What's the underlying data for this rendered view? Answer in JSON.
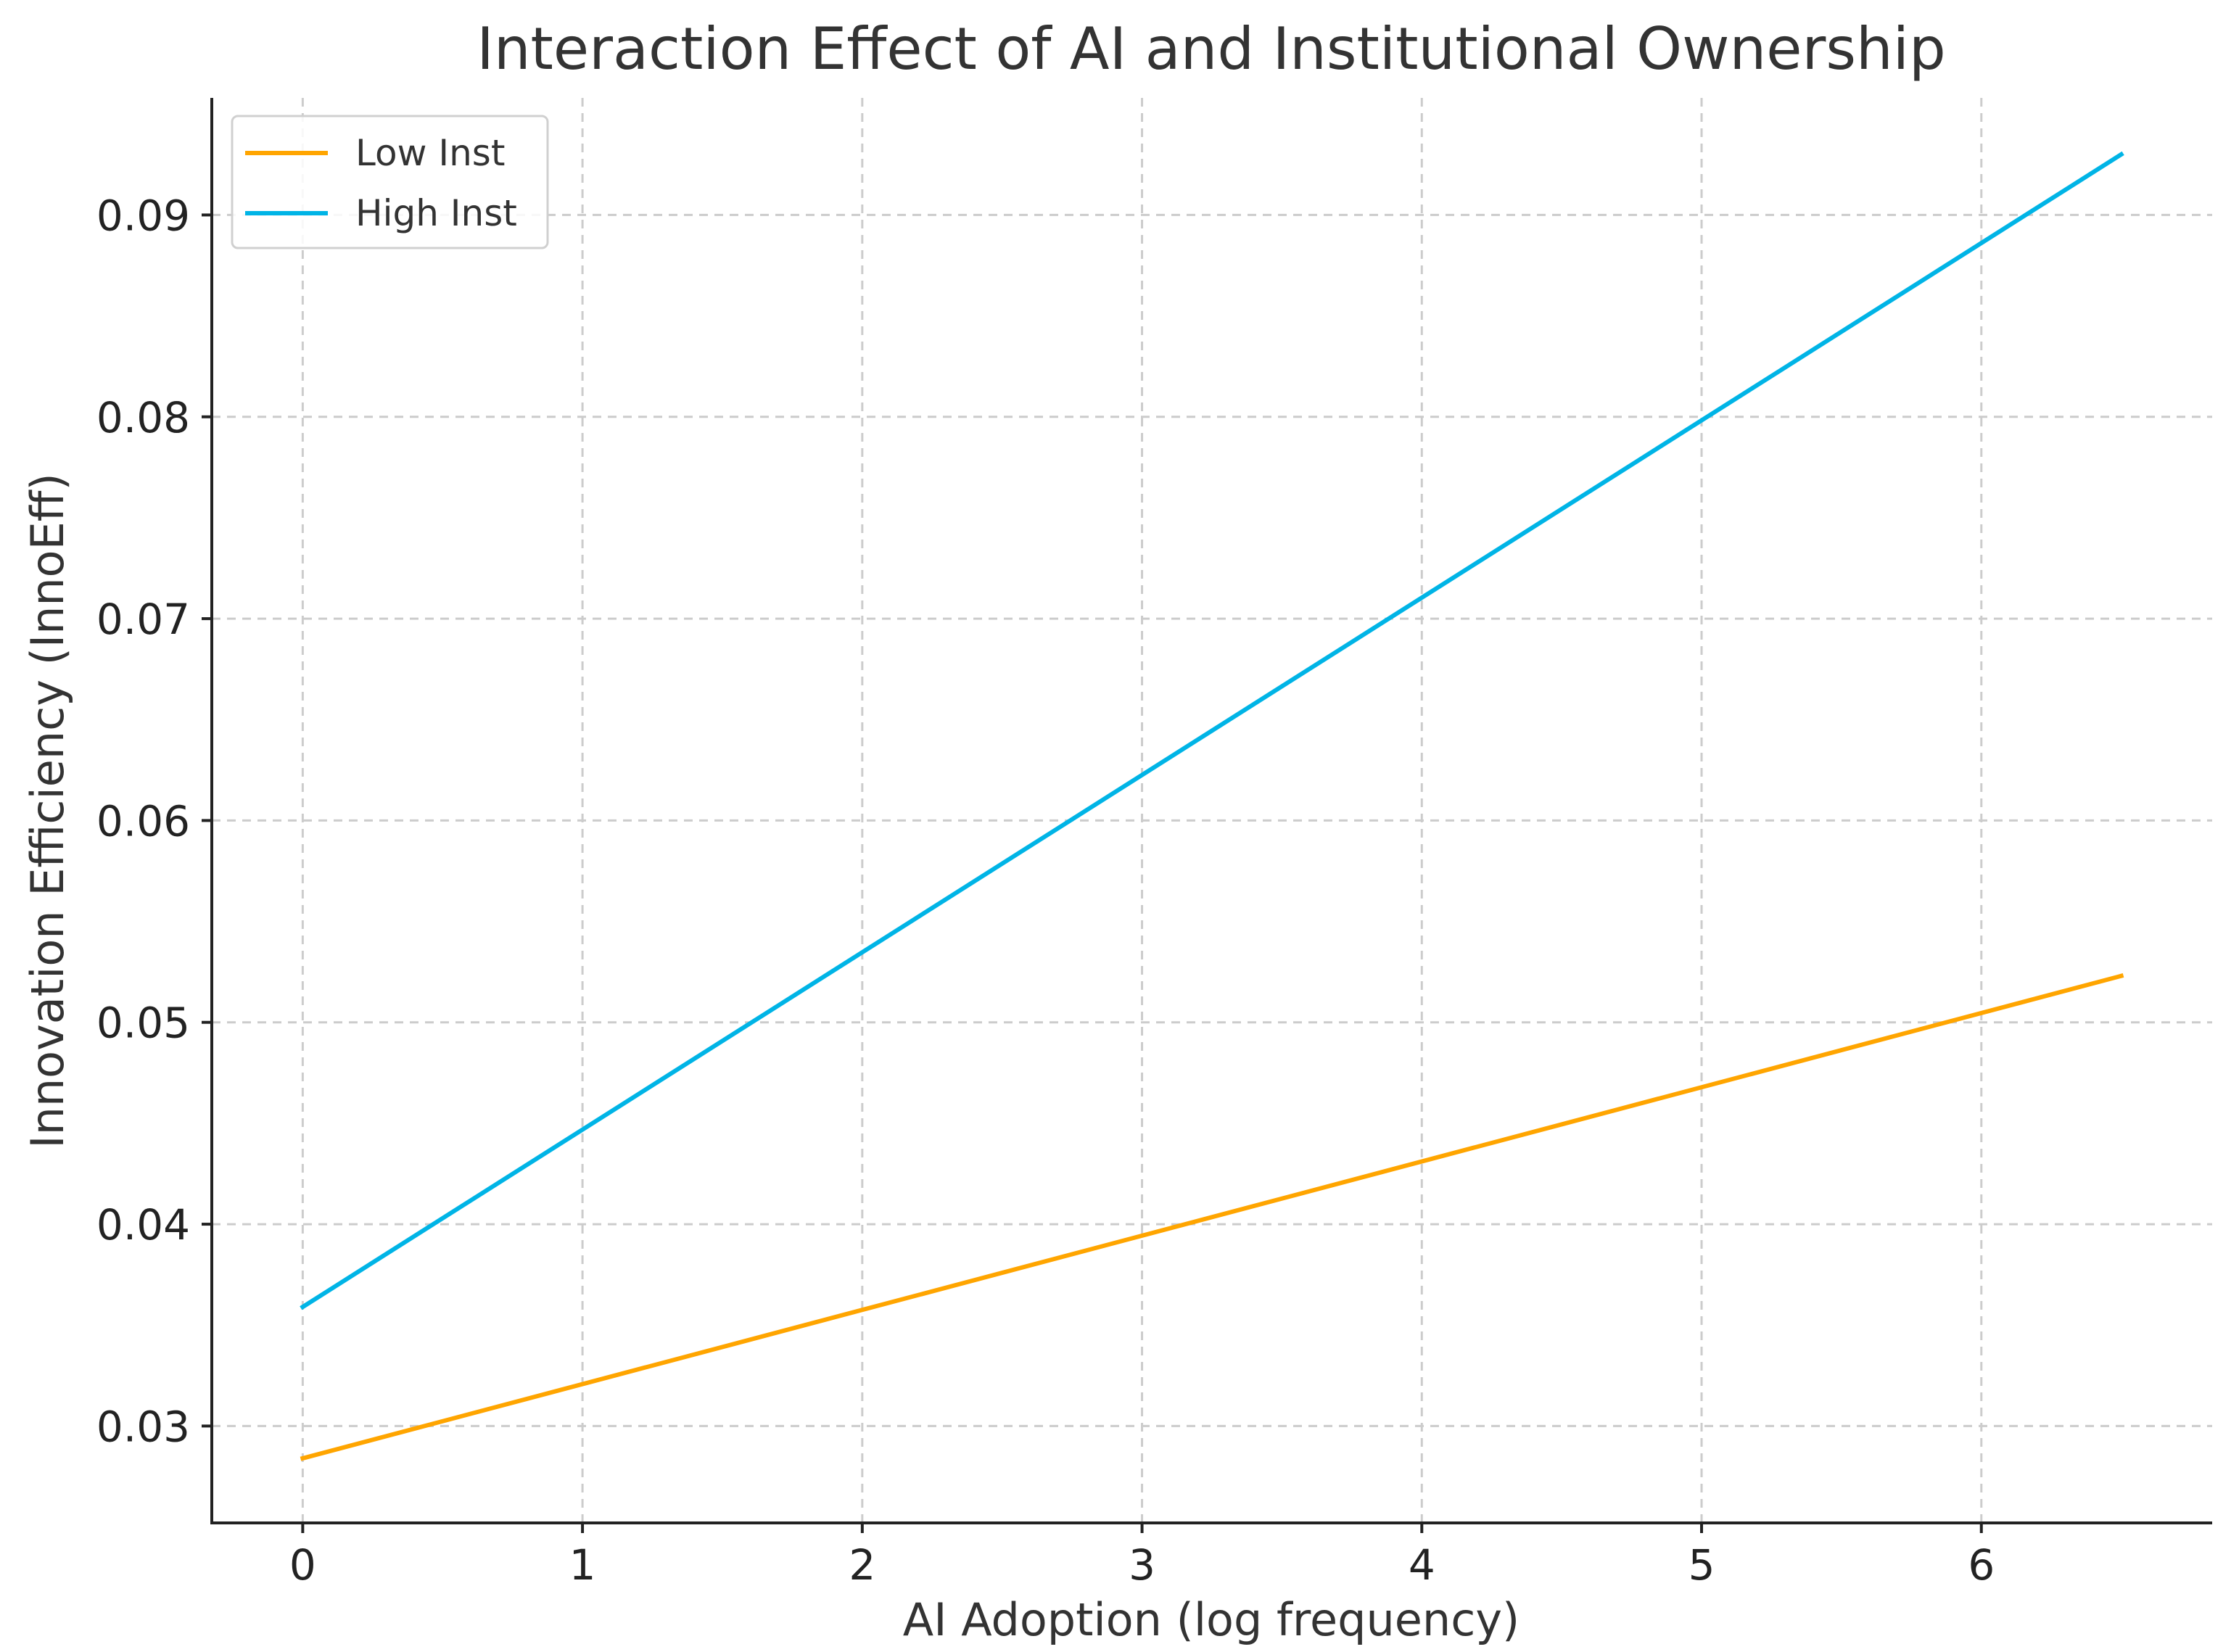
{
  "chart_data": {
    "type": "line",
    "title": "Interaction Effect of AI and Institutional Ownership",
    "xlabel": "AI Adoption (log frequency)",
    "ylabel": "Innovation Efficiency (InnoEff)",
    "xlim": [
      -0.325,
      6.825
    ],
    "ylim": [
      0.0252,
      0.0958
    ],
    "x_ticks": [
      0,
      1,
      2,
      3,
      4,
      5,
      6
    ],
    "x_tick_labels": [
      "0",
      "1",
      "2",
      "3",
      "4",
      "5",
      "6"
    ],
    "y_ticks": [
      0.03,
      0.04,
      0.05,
      0.06,
      0.07,
      0.08,
      0.09
    ],
    "y_tick_labels": [
      "0.03",
      "0.04",
      "0.05",
      "0.06",
      "0.07",
      "0.08",
      "0.09"
    ],
    "grid": true,
    "legend_position": "top-left",
    "series": [
      {
        "name": "Low Inst",
        "color": "#FFA500",
        "x": [
          0,
          6.5
        ],
        "y": [
          0.0284,
          0.0523
        ]
      },
      {
        "name": "High Inst",
        "color": "#00B4E6",
        "x": [
          0,
          6.5
        ],
        "y": [
          0.0359,
          0.093
        ]
      }
    ]
  }
}
